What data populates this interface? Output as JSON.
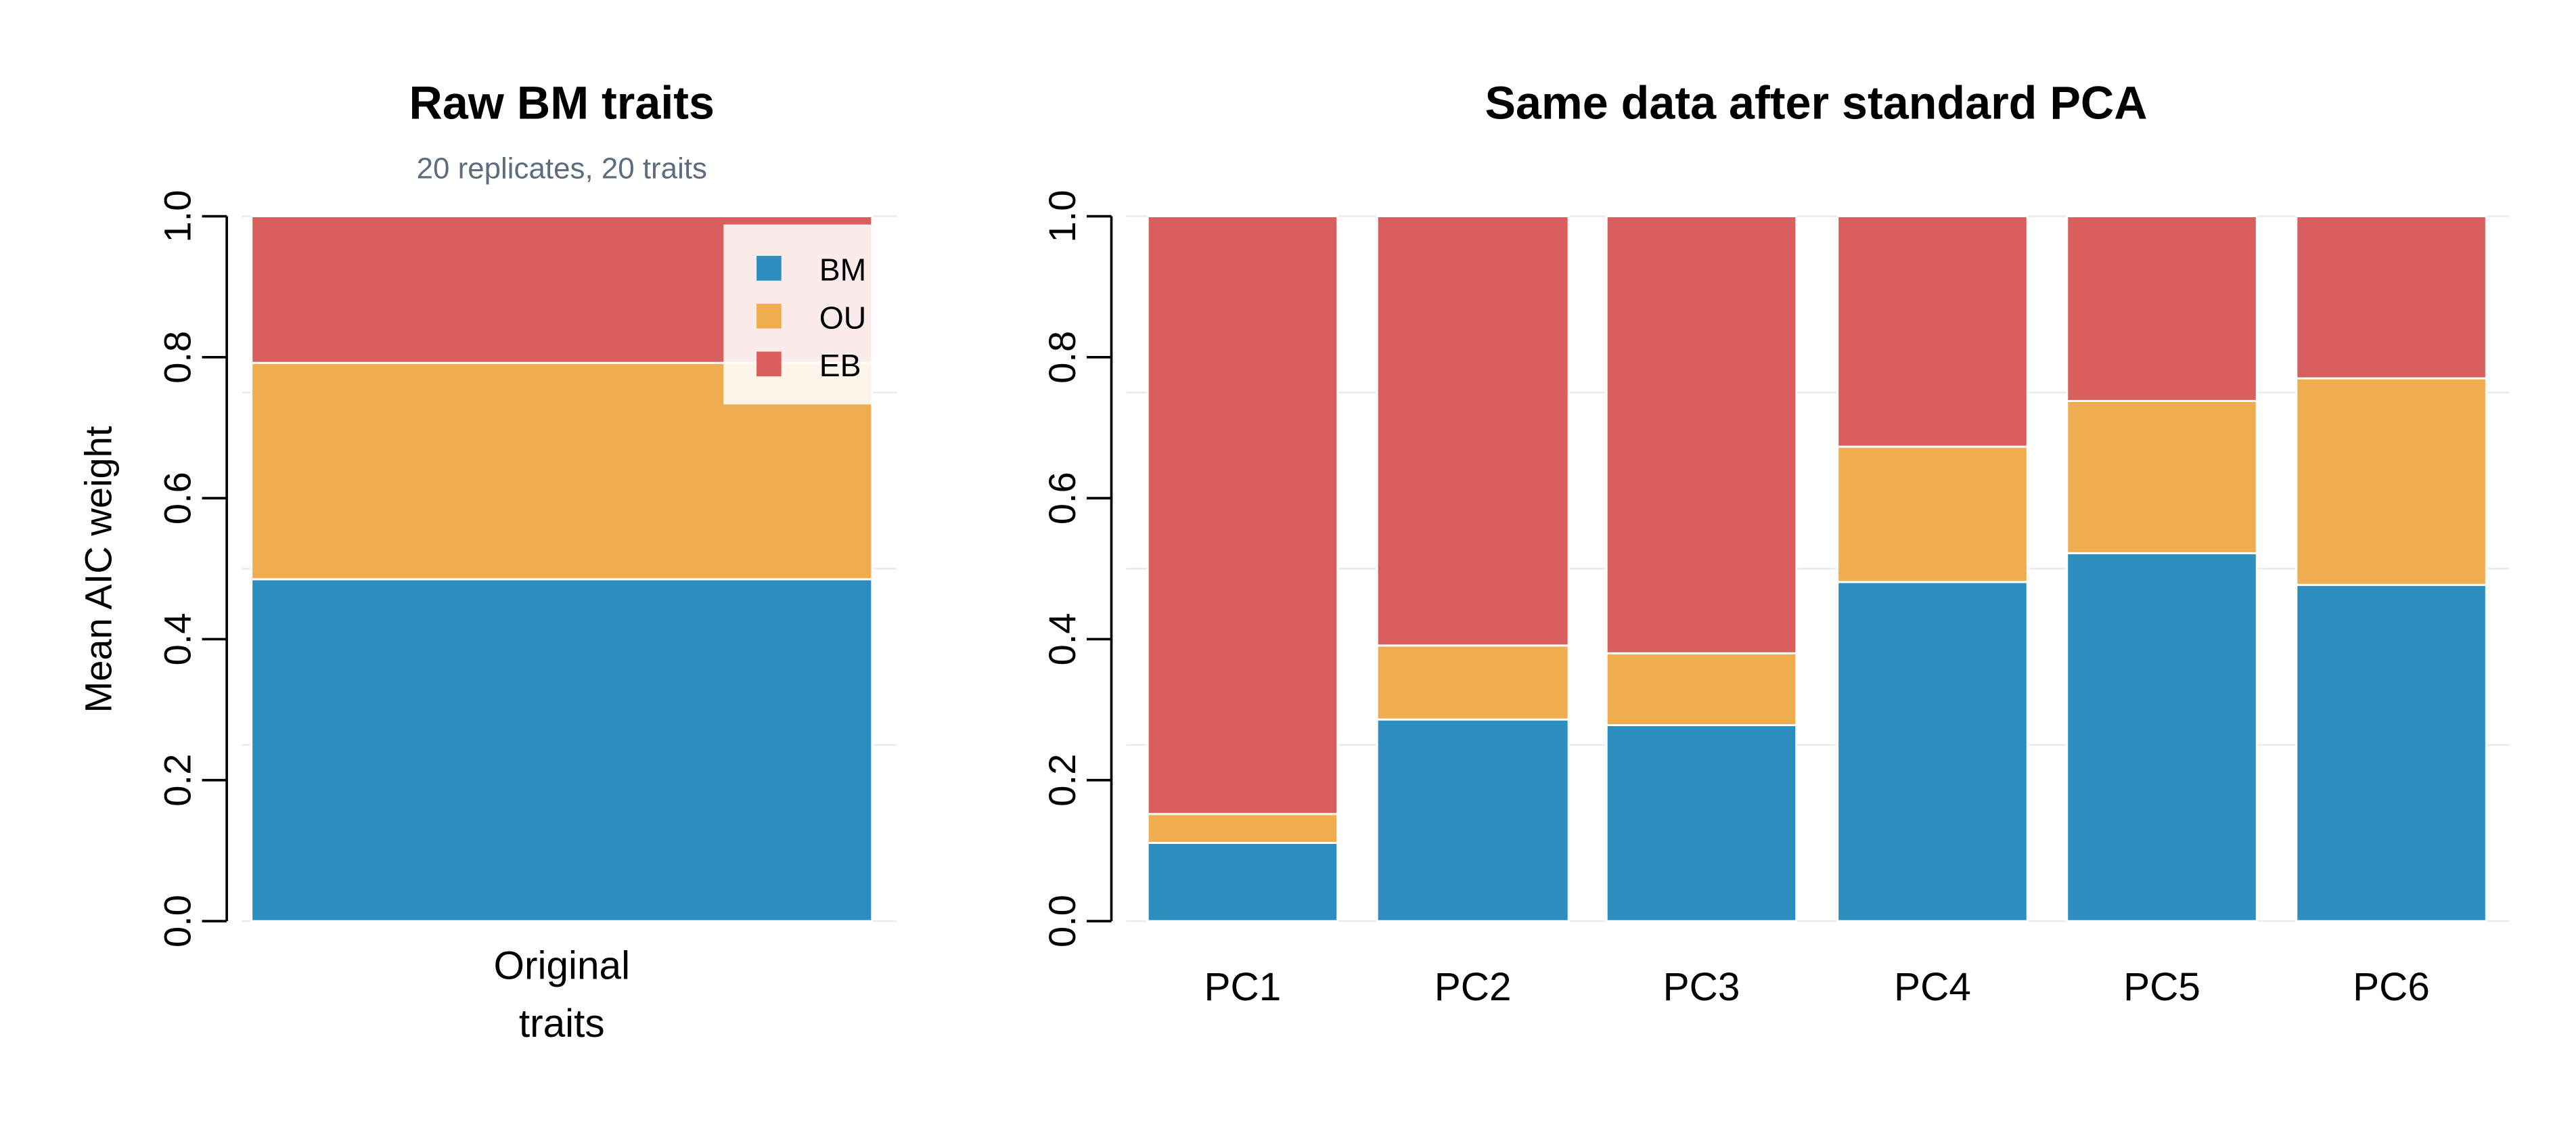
{
  "colors": {
    "BM": "#2c8dbf",
    "OU": "#efad4f",
    "EB": "#d95f5e",
    "grid": "#e8ecf0"
  },
  "legend": [
    "BM",
    "OU",
    "EB"
  ],
  "chart_data": [
    {
      "type": "bar",
      "stacked": true,
      "title": "Raw BM traits",
      "subtitle": "20 replicates, 20 traits",
      "ylabel": "Mean AIC weight",
      "xlabel": "",
      "ylim": [
        0,
        1
      ],
      "yticks": [
        "0.0",
        "0.2",
        "0.4",
        "0.6",
        "0.8",
        "1.0"
      ],
      "grid": true,
      "legend_position": "top-right",
      "categories": [
        "Original traits"
      ],
      "category_lines": [
        [
          "Original",
          "traits"
        ]
      ],
      "series": [
        {
          "name": "BM",
          "values": [
            0.485
          ]
        },
        {
          "name": "OU",
          "values": [
            0.307
          ]
        },
        {
          "name": "EB",
          "values": [
            0.208
          ]
        }
      ]
    },
    {
      "type": "bar",
      "stacked": true,
      "title": "Same data after standard PCA",
      "ylim": [
        0,
        1
      ],
      "yticks": [
        "0.0",
        "0.2",
        "0.4",
        "0.6",
        "0.8",
        "1.0"
      ],
      "grid": true,
      "categories": [
        "PC1",
        "PC2",
        "PC3",
        "PC4",
        "PC5",
        "PC6"
      ],
      "series": [
        {
          "name": "BM",
          "values": [
            0.111,
            0.286,
            0.278,
            0.481,
            0.522,
            0.477
          ]
        },
        {
          "name": "OU",
          "values": [
            0.041,
            0.105,
            0.102,
            0.192,
            0.216,
            0.293
          ]
        },
        {
          "name": "EB",
          "values": [
            0.848,
            0.609,
            0.62,
            0.327,
            0.262,
            0.23
          ]
        }
      ]
    }
  ]
}
